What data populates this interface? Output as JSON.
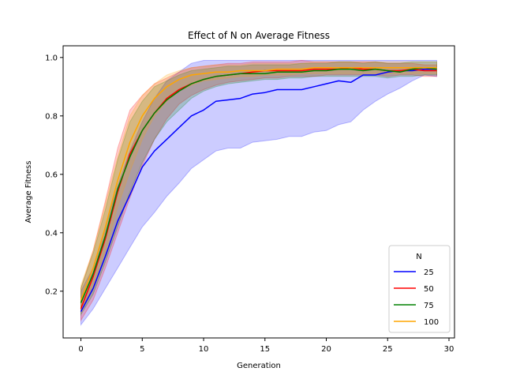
{
  "chart_data": {
    "type": "line",
    "title": "Effect of N on Average Fitness",
    "xlabel": "Generation",
    "ylabel": "Average Fitness",
    "xlim": [
      -1.45,
      30.45
    ],
    "ylim": [
      0.04,
      1.04
    ],
    "xticks": [
      0,
      5,
      10,
      15,
      20,
      25,
      30
    ],
    "yticks": [
      0.2,
      0.4,
      0.6,
      0.8,
      1.0
    ],
    "ytick_labels": [
      "0.2",
      "0.4",
      "0.6",
      "0.8",
      "1.0"
    ],
    "grid": false,
    "legend_title": "N",
    "legend_position": "lower right",
    "x": [
      0,
      1,
      2,
      3,
      4,
      5,
      6,
      7,
      8,
      9,
      10,
      11,
      12,
      13,
      14,
      15,
      16,
      17,
      18,
      19,
      20,
      21,
      22,
      23,
      24,
      25,
      26,
      27,
      28,
      29
    ],
    "series": [
      {
        "name": "25",
        "color": "#0000ff",
        "values": [
          0.13,
          0.21,
          0.32,
          0.44,
          0.53,
          0.625,
          0.68,
          0.72,
          0.76,
          0.8,
          0.82,
          0.85,
          0.855,
          0.86,
          0.875,
          0.88,
          0.89,
          0.89,
          0.89,
          0.9,
          0.91,
          0.92,
          0.915,
          0.94,
          0.94,
          0.95,
          0.955,
          0.955,
          0.96,
          0.96
        ],
        "lower": [
          0.085,
          0.14,
          0.21,
          0.28,
          0.35,
          0.42,
          0.47,
          0.525,
          0.57,
          0.62,
          0.65,
          0.68,
          0.69,
          0.69,
          0.71,
          0.715,
          0.72,
          0.73,
          0.73,
          0.745,
          0.75,
          0.77,
          0.78,
          0.82,
          0.85,
          0.875,
          0.895,
          0.92,
          0.94,
          0.935
        ],
        "upper": [
          0.2,
          0.28,
          0.42,
          0.56,
          0.68,
          0.78,
          0.86,
          0.92,
          0.95,
          0.98,
          0.99,
          0.99,
          0.99,
          0.99,
          0.99,
          0.99,
          0.99,
          0.99,
          0.99,
          0.99,
          0.99,
          0.99,
          0.99,
          0.99,
          0.99,
          0.99,
          0.99,
          0.99,
          0.99,
          0.99
        ]
      },
      {
        "name": "50",
        "color": "#ff0000",
        "values": [
          0.14,
          0.25,
          0.38,
          0.54,
          0.67,
          0.75,
          0.81,
          0.86,
          0.89,
          0.91,
          0.925,
          0.935,
          0.94,
          0.945,
          0.95,
          0.955,
          0.955,
          0.955,
          0.955,
          0.96,
          0.96,
          0.96,
          0.965,
          0.96,
          0.96,
          0.955,
          0.955,
          0.96,
          0.955,
          0.955
        ],
        "lower": [
          0.1,
          0.17,
          0.28,
          0.4,
          0.52,
          0.63,
          0.72,
          0.79,
          0.84,
          0.87,
          0.89,
          0.905,
          0.915,
          0.92,
          0.925,
          0.93,
          0.93,
          0.935,
          0.935,
          0.935,
          0.94,
          0.94,
          0.94,
          0.94,
          0.94,
          0.935,
          0.94,
          0.94,
          0.935,
          0.935
        ],
        "upper": [
          0.21,
          0.34,
          0.51,
          0.69,
          0.82,
          0.87,
          0.91,
          0.93,
          0.95,
          0.965,
          0.97,
          0.975,
          0.98,
          0.98,
          0.985,
          0.985,
          0.985,
          0.985,
          0.99,
          0.985,
          0.985,
          0.985,
          0.985,
          0.985,
          0.985,
          0.98,
          0.98,
          0.98,
          0.975,
          0.975
        ]
      },
      {
        "name": "75",
        "color": "#008000",
        "values": [
          0.16,
          0.26,
          0.39,
          0.55,
          0.66,
          0.75,
          0.81,
          0.855,
          0.885,
          0.91,
          0.925,
          0.935,
          0.94,
          0.945,
          0.945,
          0.945,
          0.95,
          0.95,
          0.95,
          0.955,
          0.955,
          0.96,
          0.96,
          0.955,
          0.96,
          0.955,
          0.95,
          0.96,
          0.965,
          0.96
        ],
        "lower": [
          0.12,
          0.19,
          0.3,
          0.42,
          0.54,
          0.64,
          0.72,
          0.78,
          0.82,
          0.86,
          0.885,
          0.9,
          0.91,
          0.915,
          0.92,
          0.925,
          0.925,
          0.93,
          0.93,
          0.935,
          0.935,
          0.935,
          0.935,
          0.935,
          0.935,
          0.93,
          0.935,
          0.935,
          0.94,
          0.94
        ],
        "upper": [
          0.21,
          0.33,
          0.48,
          0.65,
          0.78,
          0.85,
          0.9,
          0.92,
          0.94,
          0.955,
          0.96,
          0.965,
          0.97,
          0.97,
          0.975,
          0.975,
          0.975,
          0.975,
          0.98,
          0.98,
          0.98,
          0.985,
          0.985,
          0.98,
          0.985,
          0.98,
          0.98,
          0.985,
          0.985,
          0.985
        ]
      },
      {
        "name": "100",
        "color": "#ffa500",
        "values": [
          0.17,
          0.28,
          0.42,
          0.58,
          0.71,
          0.8,
          0.86,
          0.9,
          0.925,
          0.94,
          0.945,
          0.95,
          0.95,
          0.955,
          0.955,
          0.955,
          0.96,
          0.96,
          0.96,
          0.965,
          0.965,
          0.965,
          0.965,
          0.965,
          0.965,
          0.965,
          0.965,
          0.965,
          0.965,
          0.965
        ],
        "lower": [
          0.13,
          0.22,
          0.34,
          0.49,
          0.61,
          0.72,
          0.8,
          0.85,
          0.885,
          0.905,
          0.92,
          0.925,
          0.93,
          0.935,
          0.935,
          0.94,
          0.94,
          0.94,
          0.945,
          0.945,
          0.945,
          0.945,
          0.945,
          0.945,
          0.945,
          0.945,
          0.945,
          0.945,
          0.945,
          0.945
        ],
        "upper": [
          0.22,
          0.34,
          0.5,
          0.66,
          0.8,
          0.87,
          0.91,
          0.94,
          0.955,
          0.965,
          0.97,
          0.975,
          0.975,
          0.975,
          0.98,
          0.98,
          0.98,
          0.98,
          0.98,
          0.985,
          0.985,
          0.985,
          0.985,
          0.985,
          0.985,
          0.985,
          0.985,
          0.985,
          0.985,
          0.985
        ]
      }
    ]
  }
}
